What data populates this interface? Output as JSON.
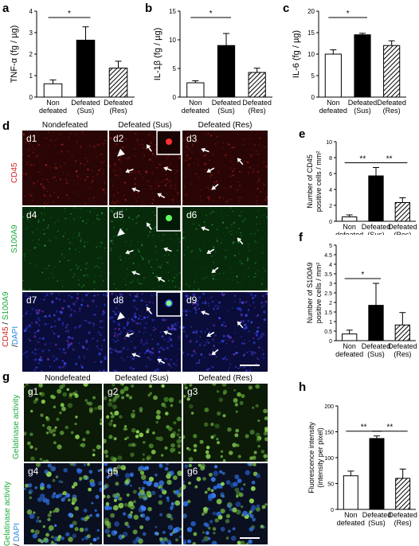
{
  "panel_letters": {
    "a": "a",
    "b": "b",
    "c": "c",
    "d": "d",
    "e": "e",
    "f": "f",
    "g": "g",
    "h": "h"
  },
  "chart_data": [
    {
      "id": "a",
      "type": "bar",
      "ylabel": "TNF-α (fg / µg)",
      "ylim": [
        0,
        4
      ],
      "yticks": [
        "0",
        "1",
        "2",
        "3",
        "4"
      ],
      "categories": [
        [
          "Non",
          "defeated"
        ],
        [
          "Defeated",
          "(Sus)"
        ],
        [
          "Defeated",
          "(Res)"
        ]
      ],
      "values": [
        0.62,
        2.65,
        1.35
      ],
      "errors": [
        0.18,
        0.62,
        0.32
      ],
      "fills": [
        "white",
        "black",
        "hatch"
      ],
      "sig": [
        {
          "from": 0,
          "to": 1,
          "label": "*"
        }
      ]
    },
    {
      "id": "b",
      "type": "bar",
      "ylabel": "IL-1β (fg / µg)",
      "ylim": [
        0,
        15
      ],
      "yticks": [
        "0",
        "5",
        "10",
        "15"
      ],
      "categories": [
        [
          "Non",
          "defeated"
        ],
        [
          "Defeated",
          "(Sus)"
        ],
        [
          "Defeated",
          "(Res)"
        ]
      ],
      "values": [
        2.5,
        9.0,
        4.3
      ],
      "errors": [
        0.35,
        2.1,
        0.75
      ],
      "fills": [
        "white",
        "black",
        "hatch"
      ],
      "sig": [
        {
          "from": 0,
          "to": 1,
          "label": "*"
        }
      ]
    },
    {
      "id": "c",
      "type": "bar",
      "ylabel": "IL-6 (fg / µg)",
      "ylim": [
        0,
        20
      ],
      "yticks": [
        "0",
        "5",
        "10",
        "15",
        "20"
      ],
      "categories": [
        [
          "Non",
          "defeated"
        ],
        [
          "Defeated",
          "(Sus)"
        ],
        [
          "Defeated",
          "(Res)"
        ]
      ],
      "values": [
        10.0,
        14.5,
        12.0
      ],
      "errors": [
        1.0,
        0.35,
        1.1
      ],
      "fills": [
        "white",
        "black",
        "hatch"
      ],
      "sig": [
        {
          "from": 0,
          "to": 1,
          "label": "*"
        }
      ]
    },
    {
      "id": "e",
      "type": "bar",
      "ylabel_lines": [
        "Number of CD45",
        "positive cells / mm²"
      ],
      "ylim": [
        0,
        10
      ],
      "yticks": [
        "0",
        "2",
        "4",
        "6",
        "8",
        "10"
      ],
      "categories": [
        [
          "Non",
          "defeated"
        ],
        [
          "Defeated",
          "(Sus)"
        ],
        [
          "Defeated",
          "(Res)"
        ]
      ],
      "values": [
        0.55,
        5.7,
        2.35
      ],
      "errors": [
        0.25,
        1.05,
        0.6
      ],
      "fills": [
        "white",
        "black",
        "hatch"
      ],
      "sig": [
        {
          "from": 0,
          "to": 1,
          "label": "**"
        },
        {
          "from": 1,
          "to": 2,
          "label": "**"
        }
      ]
    },
    {
      "id": "f",
      "type": "bar",
      "ylabel_lines": [
        "Number of S100A9",
        "positive cells / mm²"
      ],
      "ylim": [
        0,
        5
      ],
      "yticks": [
        "0",
        "0.5",
        "1",
        "1.5",
        "2",
        "2.5",
        "3",
        "3.5",
        "4",
        "4.5",
        "5"
      ],
      "categories": [
        [
          "Non",
          "defeated"
        ],
        [
          "Defeated",
          "(Sus)"
        ],
        [
          "Defeated",
          "(Res)"
        ]
      ],
      "values": [
        0.35,
        1.85,
        0.82
      ],
      "errors": [
        0.2,
        1.15,
        0.65
      ],
      "fills": [
        "white",
        "black",
        "hatch"
      ],
      "sig": [
        {
          "from": 0,
          "to": 1,
          "label": "*"
        }
      ]
    },
    {
      "id": "h",
      "type": "bar",
      "ylabel_lines": [
        "Fluorescence intensity",
        "(intensity per pixel)"
      ],
      "ylim": [
        0,
        200
      ],
      "yticks": [
        "0",
        "50",
        "100",
        "150",
        "200"
      ],
      "categories": [
        [
          "Non",
          "defeated"
        ],
        [
          "Defeated",
          "(Sus)"
        ],
        [
          "Defeated",
          "(Res)"
        ]
      ],
      "values": [
        65,
        137,
        60
      ],
      "errors": [
        9,
        5,
        18
      ],
      "fills": [
        "white",
        "black",
        "hatch"
      ],
      "sig": [
        {
          "from": 0,
          "to": 1,
          "label": "**"
        },
        {
          "from": 1,
          "to": 2,
          "label": "**"
        }
      ]
    }
  ],
  "panel_d": {
    "column_headers": [
      "Nondefeated",
      "Defeated (Sus)",
      "Defeated (Res)"
    ],
    "row_labels": {
      "cd45": "CD45",
      "s100a9": "S100A9",
      "merge_cd45": "CD45",
      "merge_sep1": " / ",
      "merge_s100a9": "S100A9",
      "merge_sep2": " /",
      "merge_dapi": "DAPI"
    },
    "tiles": [
      "d1",
      "d2",
      "d3",
      "d4",
      "d5",
      "d6",
      "d7",
      "d8",
      "d9"
    ],
    "colors": {
      "cd45": "#d21e1e",
      "s100a9": "#1eaa3c",
      "dapi": "#2a8adc"
    }
  },
  "panel_g": {
    "column_headers": [
      "Nondefeated",
      "Defeated (Sus)",
      "Defeated (Res)"
    ],
    "row_labels": {
      "gel": "Gelatinase activity",
      "gel2": "Gelatinase activity",
      "merge_sep": "/ ",
      "dapi": "DAPI"
    },
    "tiles": [
      "g1",
      "g2",
      "g3",
      "g4",
      "g5",
      "g6"
    ]
  }
}
